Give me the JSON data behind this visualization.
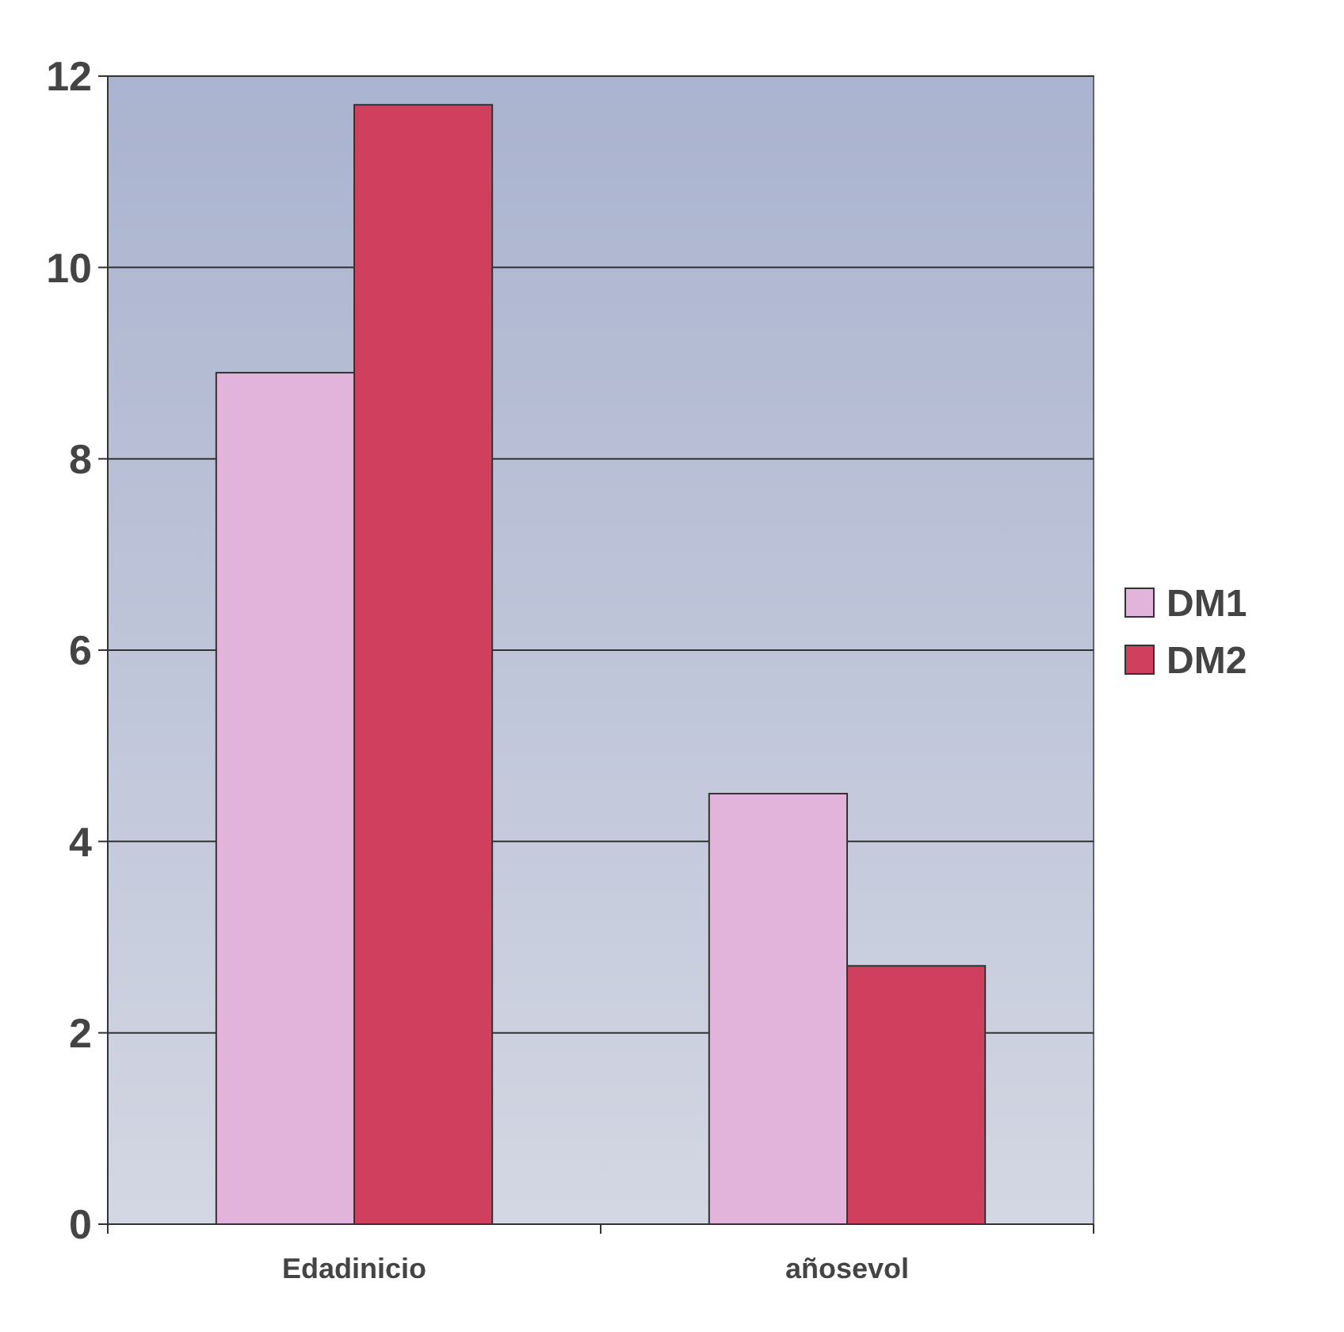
{
  "chart_data": {
    "type": "bar",
    "categories": [
      "Edadinicio",
      "añosevol"
    ],
    "series": [
      {
        "name": "DM1",
        "color": "#e2b4dc",
        "values": [
          8.9,
          4.5
        ]
      },
      {
        "name": "DM2",
        "color": "#d0405e",
        "values": [
          11.7,
          2.7
        ]
      }
    ],
    "ylim": [
      0,
      12
    ],
    "yticks": [
      0,
      2,
      4,
      6,
      8,
      10,
      12
    ],
    "grid": "y",
    "legend": "right"
  }
}
